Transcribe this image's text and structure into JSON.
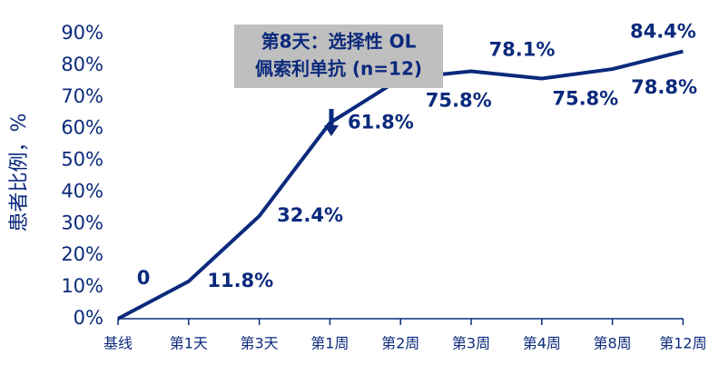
{
  "chart_data": {
    "type": "line",
    "y_label": "患者比例，%",
    "annotation": [
      "第8天：选择性 OL",
      "佩索利单抗 (n=12)"
    ],
    "categories": [
      "基线",
      "第1天",
      "第3天",
      "第1周",
      "第2周",
      "第3周",
      "第4周",
      "第8周",
      "第12周"
    ],
    "values": [
      0,
      11.8,
      32.4,
      61.8,
      75.8,
      78.1,
      75.8,
      78.8,
      84.4
    ],
    "value_labels": [
      "0",
      "11.8%",
      "32.4%",
      "61.8%",
      "75.8%",
      "78.1%",
      "75.8%",
      "78.8%",
      "84.4%"
    ],
    "color": "#0b2a7c",
    "ylim": [
      0,
      90
    ],
    "yticks": [
      {
        "value": 0,
        "label": "0%"
      },
      {
        "value": 10,
        "label": "10%"
      },
      {
        "value": 20,
        "label": "20%"
      },
      {
        "value": 30,
        "label": "30%"
      },
      {
        "value": 40,
        "label": "40%"
      },
      {
        "value": 50,
        "label": "50%"
      },
      {
        "value": 60,
        "label": "60%"
      },
      {
        "value": 70,
        "label": "70%"
      },
      {
        "value": 80,
        "label": "80%"
      },
      {
        "value": 90,
        "label": "90%"
      }
    ]
  }
}
